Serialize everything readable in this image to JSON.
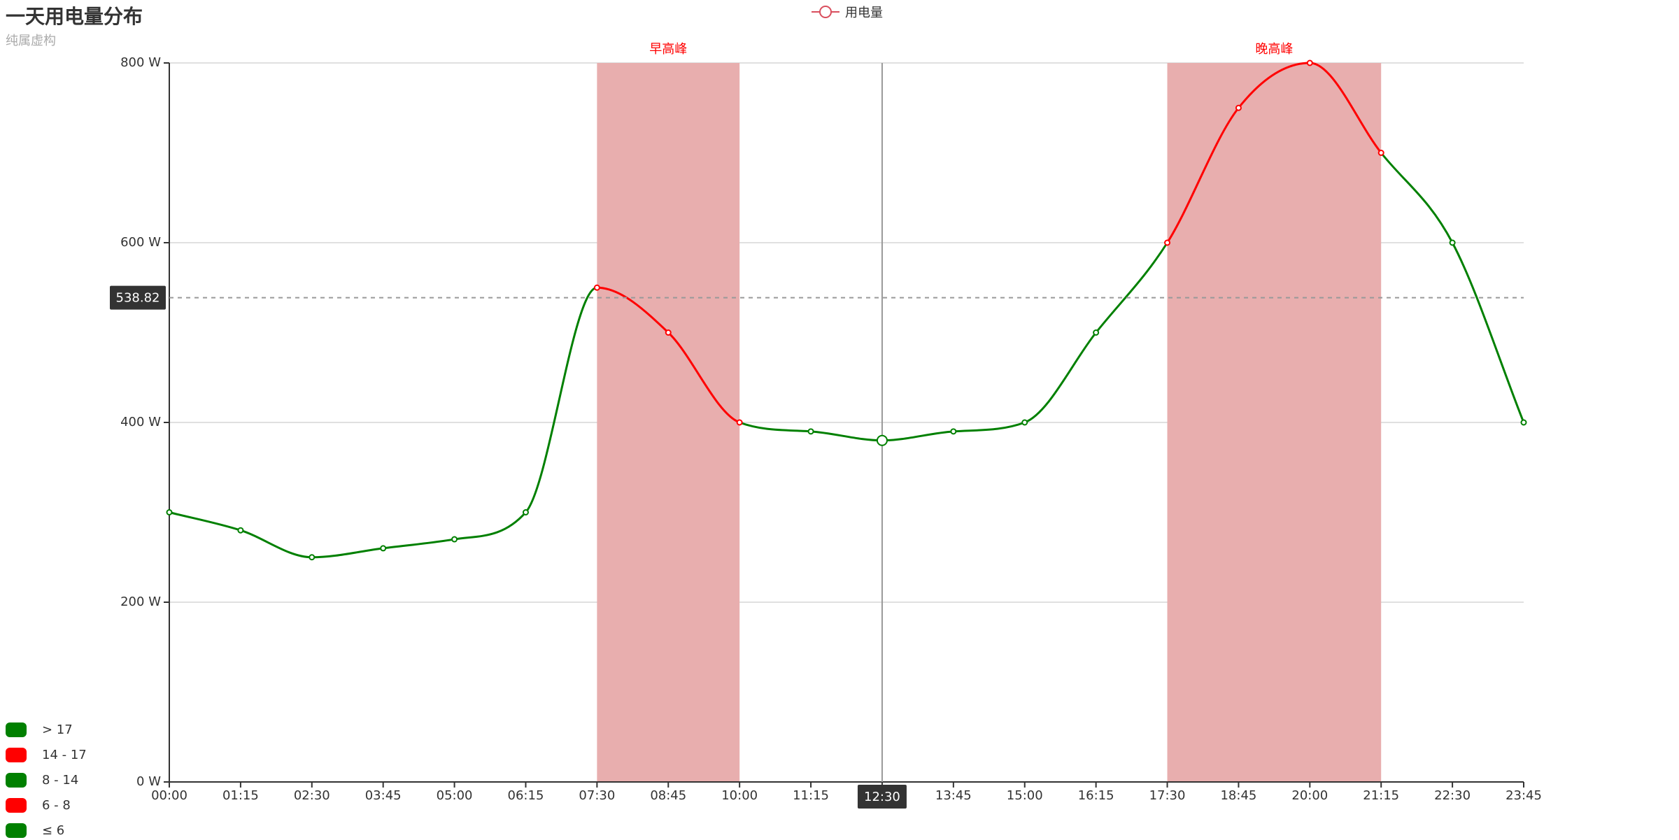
{
  "chart_data": {
    "type": "line",
    "title": "一天用电量分布",
    "subtitle": "纯属虚构",
    "legend": [
      "用电量"
    ],
    "categories": [
      "00:00",
      "01:15",
      "02:30",
      "03:45",
      "05:00",
      "06:15",
      "07:30",
      "08:45",
      "10:00",
      "11:15",
      "12:30",
      "13:45",
      "15:00",
      "16:15",
      "17:30",
      "18:45",
      "20:00",
      "21:15",
      "22:30",
      "23:45"
    ],
    "series": [
      {
        "name": "用电量",
        "smooth": true,
        "values": [
          300,
          280,
          250,
          260,
          270,
          300,
          550,
          500,
          400,
          390,
          380,
          390,
          400,
          500,
          600,
          750,
          800,
          700,
          600,
          400
        ]
      }
    ],
    "y_axis": {
      "min": 0,
      "max": 800,
      "unit": "W",
      "ticks": [
        0,
        200,
        400,
        600,
        800
      ]
    },
    "visual_map": {
      "pieces": [
        {
          "label": "> 17",
          "color": "#008000"
        },
        {
          "label": "14 - 17",
          "color": "#ff0000"
        },
        {
          "label": "8 - 14",
          "color": "#008000"
        },
        {
          "label": "6 - 8",
          "color": "#ff0000"
        },
        {
          "label": "≤ 6",
          "color": "#008000"
        }
      ],
      "red_index_ranges": [
        [
          6,
          8
        ],
        [
          14,
          17
        ]
      ]
    },
    "mark_areas": [
      {
        "name": "早高峰",
        "from": "07:30",
        "to": "10:00",
        "color": "#e8aeae"
      },
      {
        "name": "晚高峰",
        "from": "17:30",
        "to": "21:15",
        "color": "#e8aeae"
      }
    ],
    "axis_pointer": {
      "x_label": "12:30",
      "y_label": "538.82",
      "y_value": 538.82
    },
    "highlighted_category": "12:30",
    "colors": {
      "normal": "#008000",
      "peak": "#ff0000",
      "text": "#333333",
      "subtitle": "#aaaaaa",
      "grid": "#e0e0e0",
      "pointer_bg": "#333333"
    },
    "grid_lines": true
  }
}
